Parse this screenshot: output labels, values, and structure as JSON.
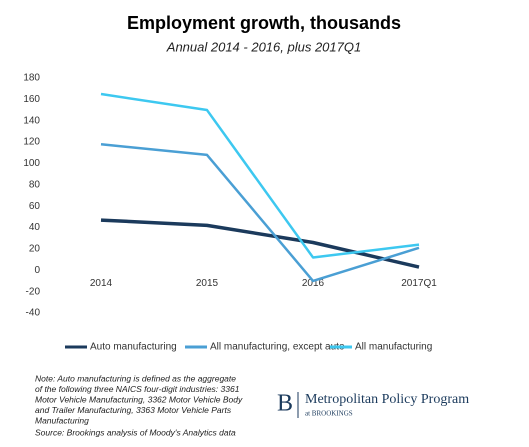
{
  "chart_data": {
    "type": "line",
    "title": "Employment growth, thousands",
    "subtitle": "Annual 2014 - 2016, plus 2017Q1",
    "categories": [
      "2014",
      "2015",
      "2016",
      "2017Q1"
    ],
    "series": [
      {
        "name": "Auto manufacturing",
        "color": "#1b3a5c",
        "values": [
          47,
          42,
          26,
          3
        ]
      },
      {
        "name": "All manufacturing, except auto",
        "color": "#4a9fd4",
        "values": [
          118,
          108,
          -10,
          21
        ]
      },
      {
        "name": "All manufacturing",
        "color": "#3dc8f0",
        "values": [
          165,
          150,
          12,
          24
        ]
      }
    ],
    "ylim": [
      -40,
      180
    ],
    "yticks": [
      -40,
      -20,
      0,
      20,
      40,
      60,
      80,
      100,
      120,
      140,
      160,
      180
    ],
    "grid": false,
    "legend": "bottom",
    "note_lines": [
      "Note: Auto manufacturing is defined as the aggregate",
      "of the following three NAICS four-digit industries: 3361",
      "Motor Vehicle Manufacturing, 3362 Motor Vehicle Body",
      "and Trailer Manufacturing, 3363 Motor Vehicle Parts",
      "Manufacturing"
    ],
    "source": "Source: Brookings analysis of Moody's Analytics data",
    "brand": {
      "letter": "B",
      "name": "Metropolitan Policy Program",
      "sub": "at BROOKINGS"
    }
  }
}
